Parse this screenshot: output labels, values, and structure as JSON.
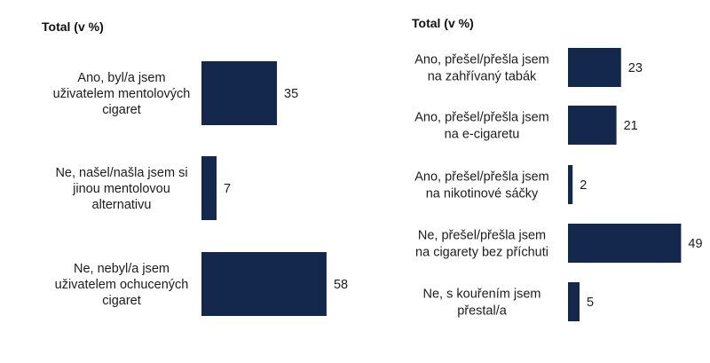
{
  "chart_data": [
    {
      "type": "bar",
      "orientation": "horizontal",
      "title": "Total (v %)",
      "categories": [
        [
          "Ano, byl/a jsem",
          "uživatelem mentolových",
          "cigaret"
        ],
        [
          "Ne, našel/našla jsem si",
          "jinou mentolovou",
          "alternativu"
        ],
        [
          "Ne, nebyl/a jsem",
          "uživatelem ochucených",
          "cigaret"
        ]
      ],
      "values": [
        35,
        7,
        58
      ],
      "colors": {
        "bar": "#14284e"
      }
    },
    {
      "type": "bar",
      "orientation": "horizontal",
      "title": "Total (v %)",
      "categories": [
        [
          "Ano, přešel/přešla jsem",
          "na zahřívaný tabák"
        ],
        [
          "Ano, přešel/přešla jsem",
          "na e-cigaretu"
        ],
        [
          "Ano, přešel/přešla jsem",
          "na nikotinové sáčky"
        ],
        [
          "Ne, přešel/přešla jsem",
          "na cigarety bez příchuti"
        ],
        [
          "Ne, s kouřením jsem",
          "přestal/a"
        ]
      ],
      "values": [
        23,
        21,
        2,
        49,
        5
      ],
      "colors": {
        "bar": "#14284e"
      }
    }
  ]
}
